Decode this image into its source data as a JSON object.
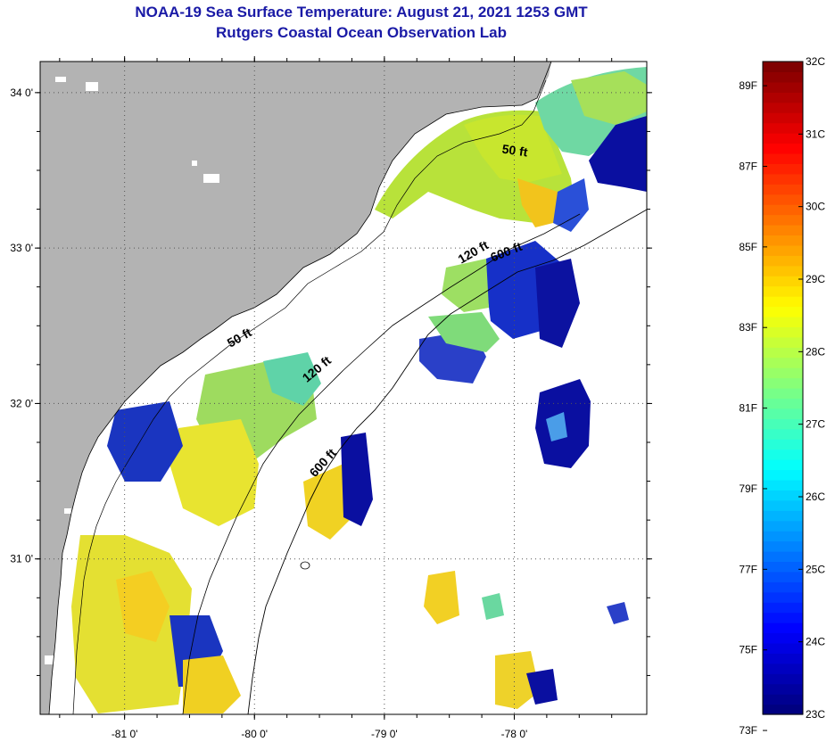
{
  "header": {
    "title": "NOAA-19 Sea Surface Temperature:  August 21, 2021 1253 GMT",
    "subtitle": "Rutgers Coastal Ocean Observation Lab"
  },
  "map": {
    "lat_ticks": [
      {
        "label": "34 0'",
        "value": 34.0
      },
      {
        "label": "33 0'",
        "value": 33.0
      },
      {
        "label": "32 0'",
        "value": 32.0
      },
      {
        "label": "31 0'",
        "value": 31.0
      }
    ],
    "lon_ticks": [
      {
        "label": "-81 0'",
        "value": -81.0
      },
      {
        "label": "-80 0'",
        "value": -80.0
      },
      {
        "label": "-79 0'",
        "value": -79.0
      },
      {
        "label": "-78 0'",
        "value": -78.0
      }
    ],
    "lat_range": [
      30.0,
      34.2
    ],
    "lon_range": [
      -81.65,
      -76.98
    ],
    "contour_labels": [
      {
        "text": "50 ft",
        "lon": -78.0,
        "lat": 33.6,
        "angle": 8
      },
      {
        "text": "120 ft",
        "lon": -78.3,
        "lat": 32.95,
        "angle": -30
      },
      {
        "text": "600 ft",
        "lon": -78.05,
        "lat": 32.95,
        "angle": -22
      },
      {
        "text": "50 ft",
        "lon": -80.1,
        "lat": 32.4,
        "angle": -30
      },
      {
        "text": "120 ft",
        "lon": -79.5,
        "lat": 32.2,
        "angle": -40
      },
      {
        "text": "600 ft",
        "lon": -79.45,
        "lat": 31.6,
        "angle": -48
      }
    ],
    "colors": {
      "land": "#b3b3b3",
      "cloud": "#ffffff",
      "frame": "#000000"
    }
  },
  "colorbar": {
    "min_c": 23,
    "max_c": 32,
    "fahrenheit_labels": [
      "89F",
      "87F",
      "85F",
      "83F",
      "81F",
      "79F",
      "77F",
      "75F",
      "73F"
    ],
    "fahrenheit_values": [
      89,
      87,
      85,
      83,
      81,
      79,
      77,
      75,
      73
    ],
    "celsius_labels": [
      "32C",
      "31C",
      "30C",
      "29C",
      "28C",
      "27C",
      "26C",
      "25C",
      "24C",
      "23C"
    ],
    "celsius_values": [
      32,
      31,
      30,
      29,
      28,
      27,
      26,
      25,
      24,
      23
    ]
  }
}
